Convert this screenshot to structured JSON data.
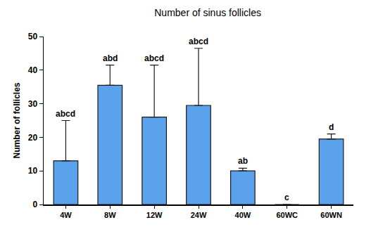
{
  "chart_data": {
    "type": "bar",
    "title": "Number of sinus follicles",
    "y_label": "Number of follicles",
    "categories": [
      "4W",
      "8W",
      "12W",
      "24W",
      "40W",
      "60WC",
      "60WN"
    ],
    "values": [
      13,
      35.5,
      26,
      29.5,
      10,
      0,
      19.5
    ],
    "error": [
      12,
      6,
      15.5,
      17,
      0.8,
      0,
      1.5
    ],
    "annotations": [
      "abcd",
      "abd",
      "abcd",
      "abcd",
      "ab",
      "c",
      "d"
    ],
    "color": "#5aa3ec",
    "ylim": [
      0,
      50
    ],
    "yticks": [
      0,
      10,
      20,
      30,
      40,
      50
    ],
    "grid": false
  }
}
